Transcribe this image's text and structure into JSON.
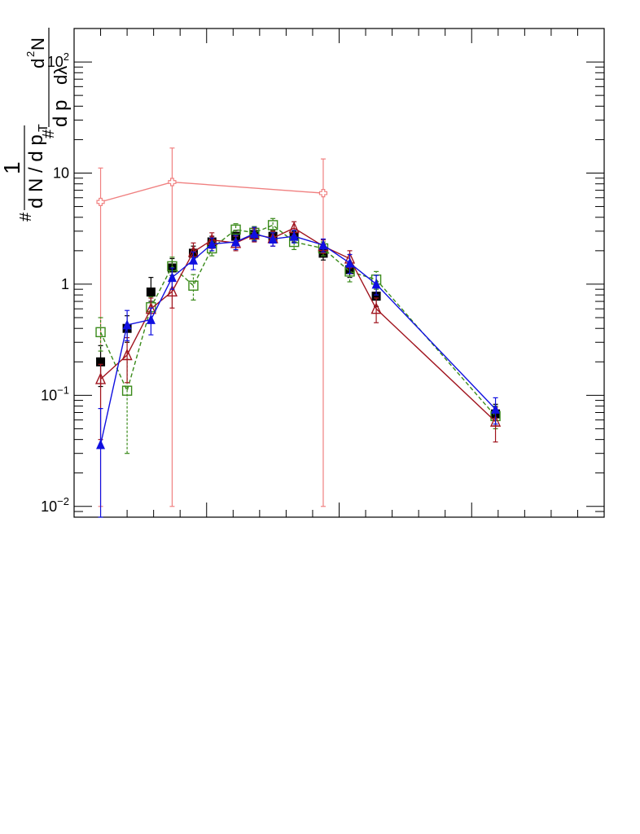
{
  "chart_data": {
    "type": "scatter",
    "title": "",
    "xlabel": "",
    "ylabel_parts": {
      "numerator_left": "1",
      "denominator_left": "d N / d p",
      "subscript": "T",
      "hash_left": "#",
      "hash_mid": "#",
      "numerator_right": "d",
      "exponent_right": "2",
      "numerator_right_tail": "N",
      "denominator_right": "d p",
      "denominator_right_tail": "dλ"
    },
    "yscale": "log",
    "ylim": [
      0.008,
      200
    ],
    "xlim": [
      0,
      100
    ],
    "y_ticks": [
      {
        "value": 0.01,
        "label_base": "10",
        "label_exp": "−2"
      },
      {
        "value": 0.1,
        "label_base": "10",
        "label_exp": "−1"
      },
      {
        "value": 1,
        "label_base": "1",
        "label_exp": ""
      },
      {
        "value": 10,
        "label_base": "10",
        "label_exp": ""
      },
      {
        "value": 100,
        "label_base": "10",
        "label_exp": "2"
      }
    ],
    "x_ticks_minor_count": 20,
    "grid": false,
    "series": [
      {
        "name": "pink open cross",
        "color": "#f08080",
        "marker": "open-cross",
        "line": "solid",
        "x": [
          5,
          18.5,
          47
        ],
        "y": [
          5.5,
          8.3,
          6.6
        ],
        "err_lo": [
          5.49,
          8.29,
          6.59
        ],
        "err_hi": [
          5.6,
          8.5,
          6.8
        ]
      },
      {
        "name": "black filled square",
        "color": "#000000",
        "marker": "filled-square",
        "line": "none",
        "x": [
          5,
          10,
          14.5,
          18.5,
          22.5,
          26,
          30.5,
          34,
          37.5,
          41.5,
          47,
          52,
          57,
          79.5
        ],
        "y": [
          0.2,
          0.4,
          0.85,
          1.4,
          1.9,
          2.4,
          2.7,
          2.8,
          2.7,
          2.7,
          1.9,
          1.35,
          0.78,
          0.068
        ],
        "err_lo": [
          0.08,
          0.1,
          0.15,
          0.2,
          0.3,
          0.3,
          0.35,
          0.35,
          0.35,
          0.3,
          0.25,
          0.2,
          0.15,
          0.015
        ],
        "err_hi": [
          0.08,
          0.12,
          0.3,
          0.3,
          0.3,
          0.3,
          0.35,
          0.35,
          0.35,
          0.3,
          0.25,
          0.2,
          0.15,
          0.015
        ]
      },
      {
        "name": "green open square",
        "color": "#3a8a1a",
        "marker": "open-square",
        "line": "dashed",
        "x": [
          5,
          10,
          14.5,
          18.5,
          22.5,
          26,
          30.5,
          34,
          37.5,
          41.5,
          47,
          52,
          57,
          79.5
        ],
        "y": [
          0.37,
          0.11,
          0.62,
          1.45,
          0.97,
          2.1,
          3.1,
          2.9,
          3.4,
          2.4,
          2.1,
          1.3,
          1.1,
          0.065
        ],
        "err_lo": [
          0.12,
          0.08,
          0.15,
          0.3,
          0.25,
          0.3,
          0.4,
          0.4,
          0.5,
          0.35,
          0.3,
          0.25,
          0.2,
          0.015
        ],
        "err_hi": [
          0.13,
          0.1,
          0.15,
          0.3,
          0.25,
          0.3,
          0.4,
          0.4,
          0.5,
          0.35,
          0.3,
          0.25,
          0.2,
          0.015
        ]
      },
      {
        "name": "dark red open triangle",
        "color": "#a0141e",
        "marker": "open-triangle",
        "line": "solid",
        "x": [
          5,
          10,
          14.5,
          18.5,
          22.5,
          26,
          30.5,
          34,
          37.5,
          41.5,
          47,
          52,
          57,
          79.5
        ],
        "y": [
          0.14,
          0.23,
          0.6,
          0.86,
          1.95,
          2.5,
          2.35,
          2.8,
          2.6,
          3.2,
          2.2,
          1.7,
          0.6,
          0.058
        ],
        "err_lo": [
          0.1,
          0.1,
          0.15,
          0.25,
          0.4,
          0.4,
          0.35,
          0.4,
          0.4,
          0.45,
          0.3,
          0.3,
          0.15,
          0.02
        ],
        "err_hi": [
          0.05,
          0.1,
          0.15,
          0.25,
          0.4,
          0.4,
          0.35,
          0.4,
          0.4,
          0.45,
          0.3,
          0.3,
          0.15,
          0.02
        ]
      },
      {
        "name": "blue filled triangle",
        "color": "#1010e0",
        "marker": "filled-triangle",
        "line": "solid",
        "x": [
          5,
          10,
          14.5,
          18.5,
          22.5,
          26,
          30.5,
          34,
          37.5,
          41.5,
          47,
          52,
          57,
          79.5
        ],
        "y": [
          0.036,
          0.43,
          0.48,
          1.15,
          1.65,
          2.3,
          2.4,
          2.85,
          2.55,
          2.7,
          2.25,
          1.55,
          1.0,
          0.075
        ],
        "err_lo": [
          0.03,
          0.12,
          0.13,
          0.25,
          0.3,
          0.3,
          0.35,
          0.4,
          0.35,
          0.35,
          0.3,
          0.3,
          0.2,
          0.02
        ],
        "err_hi": [
          0.04,
          0.15,
          0.13,
          0.25,
          0.3,
          0.3,
          0.35,
          0.4,
          0.35,
          0.35,
          0.3,
          0.3,
          0.2,
          0.02
        ]
      }
    ]
  }
}
